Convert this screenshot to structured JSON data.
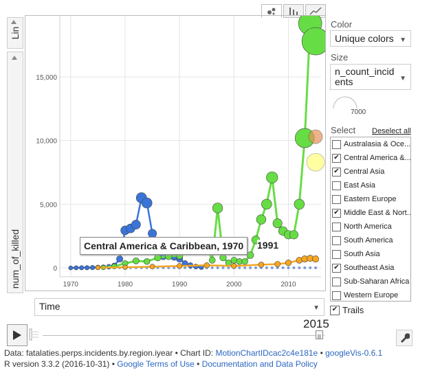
{
  "y_axis_picker": {
    "scale_label": "Lin",
    "variable_label": "num_of_killed"
  },
  "view_tabs": [
    "bubble",
    "bar",
    "line"
  ],
  "x_axis_picker": {
    "label": "Time"
  },
  "color": {
    "label": "Color",
    "value": "Unique colors"
  },
  "size": {
    "label": "Size",
    "value": "n_count_incidents",
    "legend_value": "7000"
  },
  "select": {
    "label": "Select",
    "deselect_all": "Deselect all",
    "items": [
      {
        "label": "Australasia & Oce...",
        "checked": false
      },
      {
        "label": "Central America &...",
        "checked": true
      },
      {
        "label": "Central Asia",
        "checked": true
      },
      {
        "label": "East Asia",
        "checked": false
      },
      {
        "label": "Eastern Europe",
        "checked": false
      },
      {
        "label": "Middle East & Nort...",
        "checked": true
      },
      {
        "label": "North America",
        "checked": false
      },
      {
        "label": "South America",
        "checked": false
      },
      {
        "label": "South Asia",
        "checked": false
      },
      {
        "label": "Southeast Asia",
        "checked": true
      },
      {
        "label": "Sub-Saharan Africa",
        "checked": false
      },
      {
        "label": "Western Europe",
        "checked": false
      }
    ]
  },
  "trails": {
    "label": "Trails",
    "checked": true
  },
  "year_display": "2015",
  "tooltip": {
    "text": "Central America & Caribbean, 1970",
    "extra": "1991"
  },
  "footer": {
    "line1_prefix": "Data: fatalaties.perps.incidents.by.region.iyear • Chart ID: ",
    "chart_id": "MotionChartIDcac2c4e181e",
    "sep": " • ",
    "googlevis": "googleVis-0.6.1",
    "line2_prefix": "R version 3.3.2 (2016-10-31) • ",
    "terms": "Google Terms of Use",
    "sep2": " • ",
    "policy": "Documentation and Data Policy"
  },
  "colors": {
    "central_america": "#3a74d8",
    "middle_east": "#66dd44",
    "southeast_asia": "#f5a623",
    "central_asia": "#e8945a",
    "light_yellow": "#ffff99",
    "other": "#4a78c8"
  },
  "chart_data": {
    "type": "scatter",
    "xlabel": "Time",
    "ylabel": "num_of_killed",
    "xlim": [
      1968,
      2016
    ],
    "ylim": [
      -700,
      19800
    ],
    "x_ticks": [
      1970,
      1980,
      1990,
      2000,
      2010
    ],
    "y_ticks": [
      0,
      5000,
      10000,
      15000
    ],
    "y_tick_labels": [
      "0",
      "5,000",
      "10,000",
      "15,000"
    ],
    "grid": true,
    "series": [
      {
        "name": "Central America & Caribbean",
        "color": "#3a74d8",
        "points": [
          [
            1970,
            0
          ],
          [
            1971,
            5
          ],
          [
            1972,
            10
          ],
          [
            1973,
            15
          ],
          [
            1974,
            25
          ],
          [
            1975,
            40
          ],
          [
            1976,
            55
          ],
          [
            1977,
            90
          ],
          [
            1978,
            180
          ],
          [
            1979,
            700
          ],
          [
            1980,
            2950
          ],
          [
            1981,
            3100
          ],
          [
            1982,
            3400
          ],
          [
            1983,
            5500
          ],
          [
            1984,
            5100
          ],
          [
            1985,
            2700
          ],
          [
            1986,
            1200
          ],
          [
            1987,
            900
          ],
          [
            1988,
            950
          ],
          [
            1989,
            850
          ],
          [
            1990,
            700
          ],
          [
            1991,
            350
          ],
          [
            1992,
            200
          ],
          [
            1993,
            100
          ],
          [
            1994,
            50
          ]
        ]
      },
      {
        "name": "Middle East & North Africa",
        "color": "#66dd44",
        "points": [
          [
            1976,
            30
          ],
          [
            1978,
            120
          ],
          [
            1980,
            350
          ],
          [
            1982,
            550
          ],
          [
            1984,
            500
          ],
          [
            1986,
            800
          ],
          [
            1988,
            900
          ],
          [
            1990,
            950
          ],
          [
            1992,
            1400
          ],
          [
            1993,
            1800
          ],
          [
            1994,
            2050
          ],
          [
            1995,
            1700
          ],
          [
            1996,
            600
          ],
          [
            1997,
            4700
          ],
          [
            1998,
            800
          ],
          [
            1999,
            400
          ],
          [
            2000,
            600
          ],
          [
            2001,
            500
          ],
          [
            2002,
            500
          ],
          [
            2003,
            1000
          ],
          [
            2004,
            2200
          ],
          [
            2005,
            3800
          ],
          [
            2006,
            5000
          ],
          [
            2007,
            7100
          ],
          [
            2008,
            3500
          ],
          [
            2009,
            2900
          ],
          [
            2010,
            2600
          ],
          [
            2011,
            2600
          ],
          [
            2012,
            5000
          ],
          [
            2013,
            10200
          ],
          [
            2014,
            19200
          ],
          [
            2015,
            17800
          ]
        ]
      },
      {
        "name": "Southeast Asia",
        "color": "#f5a623",
        "points": [
          [
            1975,
            20
          ],
          [
            1980,
            50
          ],
          [
            1985,
            100
          ],
          [
            1990,
            150
          ],
          [
            1995,
            200
          ],
          [
            2000,
            150
          ],
          [
            2005,
            250
          ],
          [
            2008,
            300
          ],
          [
            2010,
            400
          ],
          [
            2012,
            600
          ],
          [
            2013,
            700
          ],
          [
            2014,
            750
          ],
          [
            2015,
            700
          ]
        ]
      },
      {
        "name": "Central Asia",
        "color": "#e8945a",
        "points": [
          [
            2015,
            10300
          ]
        ]
      }
    ]
  }
}
